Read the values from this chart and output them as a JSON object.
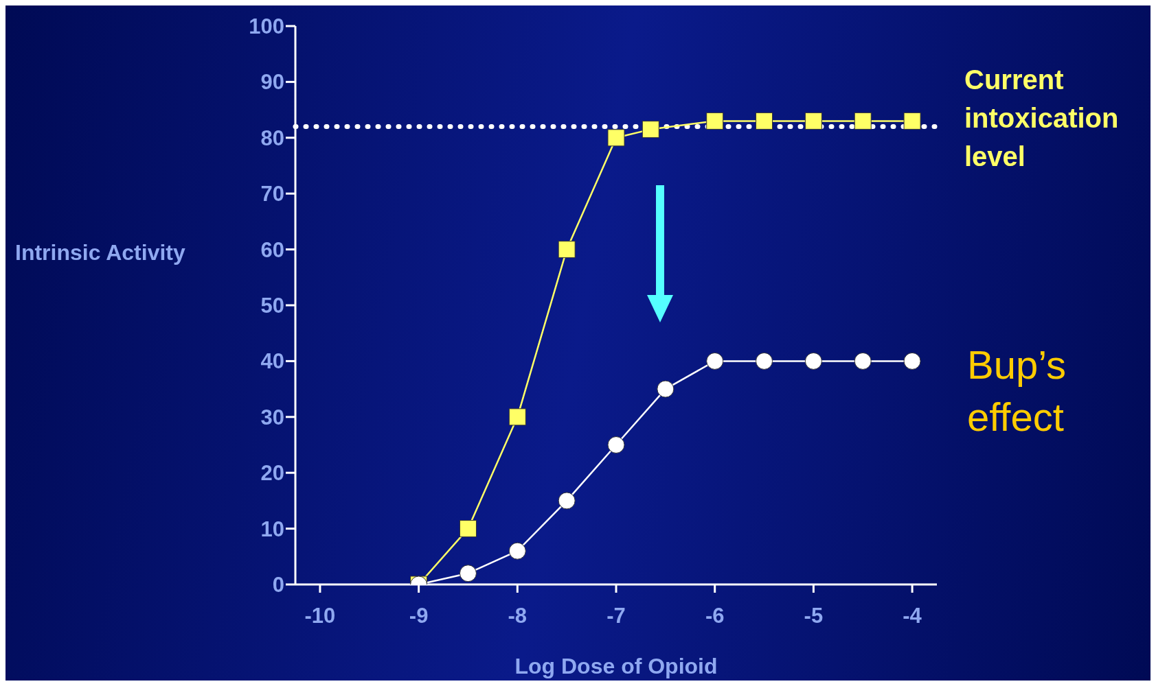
{
  "chart_data": {
    "type": "line",
    "xlabel": "Log Dose of Opioid",
    "ylabel": "Intrinsic Activity",
    "x": [
      -9,
      -8.5,
      -8,
      -7.5,
      -7,
      -6.65,
      -6,
      -5.5,
      -5,
      -4.5,
      -4
    ],
    "series": [
      {
        "color": "#ffff66",
        "marker": "square",
        "values": [
          0,
          10,
          30,
          60,
          80,
          81.5,
          83,
          83,
          83,
          83,
          83
        ]
      },
      {
        "color": "#ffffff",
        "marker": "circle",
        "x": [
          -9,
          -8.5,
          -8,
          -7.5,
          -7,
          -6.5,
          -6,
          -5.5,
          -5,
          -4.5,
          -4
        ],
        "values": [
          0,
          2,
          6,
          15,
          25,
          35,
          40,
          40,
          40,
          40,
          40
        ]
      }
    ],
    "xlim": [
      -10.25,
      -3.75
    ],
    "xticks": [
      -10,
      -9,
      -8,
      -7,
      -6,
      -5,
      -4
    ],
    "ylim": [
      0,
      100
    ],
    "yticks": [
      0,
      10,
      20,
      30,
      40,
      50,
      60,
      70,
      80,
      90,
      100
    ],
    "ref_lines": [
      {
        "axis": "y",
        "value": 82,
        "label": "Current intoxication level",
        "color": "#ffffff",
        "line_style": "dotted"
      }
    ],
    "annotations": [
      "Bup’s effect"
    ],
    "line_style": "solid"
  }
}
